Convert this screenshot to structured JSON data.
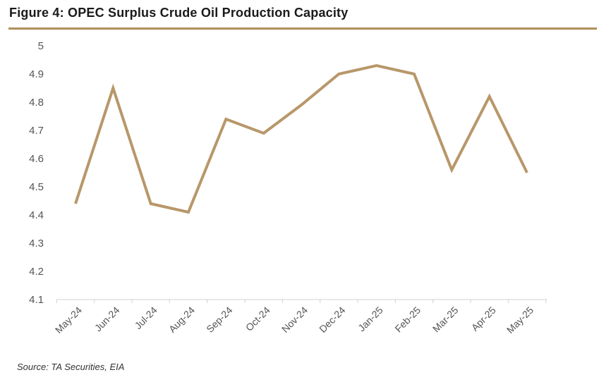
{
  "title": "Figure 4: OPEC Surplus Crude Oil Production Capacity",
  "source": "Source: TA Securities, EIA",
  "colors": {
    "line": "#b8976a",
    "rule": "#b08f5b",
    "axis": "#d0d0d0"
  },
  "chart_data": {
    "type": "line",
    "title": "",
    "xlabel": "",
    "ylabel": "",
    "categories": [
      "May-24",
      "Jun-24",
      "Jul-24",
      "Aug-24",
      "Sep-24",
      "Oct-24",
      "Nov-24",
      "Dec-24",
      "Jan-25",
      "Feb-25",
      "Mar-25",
      "Apr-25",
      "May-25"
    ],
    "series": [
      {
        "values": [
          4.44,
          4.85,
          4.44,
          4.41,
          4.74,
          4.69,
          4.79,
          4.9,
          4.93,
          4.9,
          4.56,
          4.82,
          4.55
        ]
      }
    ],
    "ylim": [
      4.1,
      5.0
    ],
    "yticks": [
      "4.1",
      "4.2",
      "4.3",
      "4.4",
      "4.5",
      "4.6",
      "4.7",
      "4.8",
      "4.9",
      "5"
    ],
    "grid": false,
    "legend": "none"
  }
}
